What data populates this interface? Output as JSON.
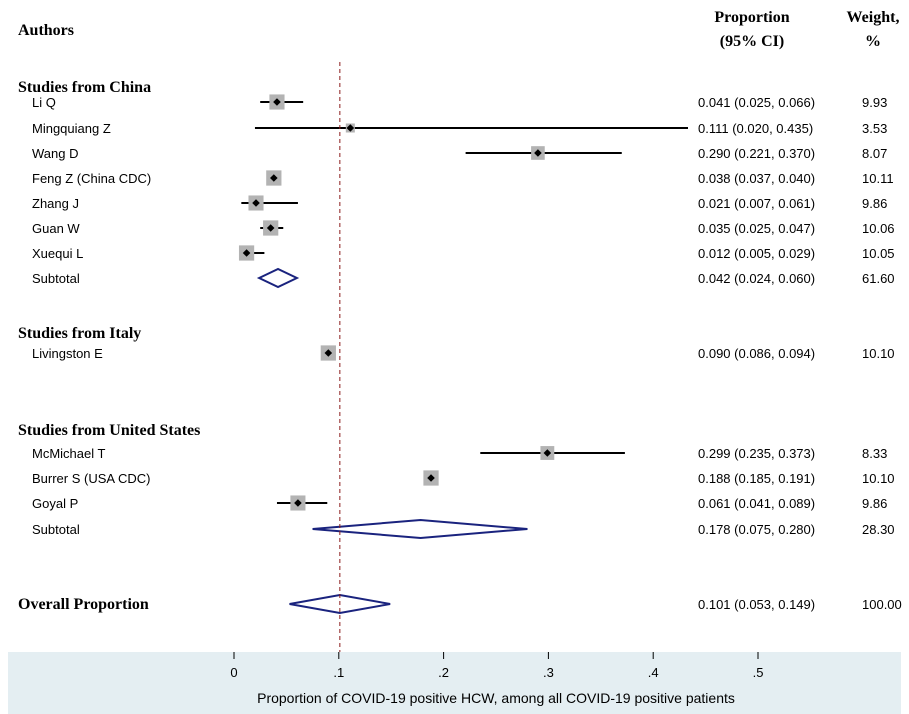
{
  "chart_data": {
    "type": "forest",
    "header": {
      "authors": "Authors",
      "proportion_line1": "Proportion",
      "proportion_line2": "(95% CI)",
      "weight_line1": "Weight,",
      "weight_line2": "%"
    },
    "groups": [
      {
        "title": "Studies from China",
        "studies": [
          {
            "label": "Li Q",
            "est": 0.041,
            "lo": 0.025,
            "hi": 0.066,
            "ci_text": "0.041 (0.025, 0.066)",
            "weight": "9.93"
          },
          {
            "label": "Mingquiang Z",
            "est": 0.111,
            "lo": 0.02,
            "hi": 0.435,
            "ci_text": "0.111 (0.020, 0.435)",
            "weight": "3.53"
          },
          {
            "label": "Wang D",
            "est": 0.29,
            "lo": 0.221,
            "hi": 0.37,
            "ci_text": "0.290 (0.221, 0.370)",
            "weight": "8.07"
          },
          {
            "label": "Feng Z (China CDC)",
            "est": 0.038,
            "lo": 0.037,
            "hi": 0.04,
            "ci_text": "0.038 (0.037, 0.040)",
            "weight": "10.11"
          },
          {
            "label": "Zhang J",
            "est": 0.021,
            "lo": 0.007,
            "hi": 0.061,
            "ci_text": "0.021 (0.007, 0.061)",
            "weight": "9.86"
          },
          {
            "label": "Guan W",
            "est": 0.035,
            "lo": 0.025,
            "hi": 0.047,
            "ci_text": "0.035 (0.025, 0.047)",
            "weight": "10.06"
          },
          {
            "label": "Xuequi L",
            "est": 0.012,
            "lo": 0.005,
            "hi": 0.029,
            "ci_text": "0.012 (0.005, 0.029)",
            "weight": "10.05"
          }
        ],
        "subtotal": {
          "label": "Subtotal",
          "est": 0.042,
          "lo": 0.024,
          "hi": 0.06,
          "ci_text": "0.042 (0.024, 0.060)",
          "weight": "61.60"
        }
      },
      {
        "title": "Studies from Italy",
        "studies": [
          {
            "label": "Livingston E",
            "est": 0.09,
            "lo": 0.086,
            "hi": 0.094,
            "ci_text": "0.090 (0.086, 0.094)",
            "weight": "10.10"
          }
        ]
      },
      {
        "title": "Studies from United States",
        "studies": [
          {
            "label": "McMichael T",
            "est": 0.299,
            "lo": 0.235,
            "hi": 0.373,
            "ci_text": "0.299 (0.235, 0.373)",
            "weight": "8.33"
          },
          {
            "label": "Burrer S (USA CDC)",
            "est": 0.188,
            "lo": 0.185,
            "hi": 0.191,
            "ci_text": "0.188 (0.185, 0.191)",
            "weight": "10.10"
          },
          {
            "label": "Goyal P",
            "est": 0.061,
            "lo": 0.041,
            "hi": 0.089,
            "ci_text": "0.061 (0.041, 0.089)",
            "weight": "9.86"
          }
        ],
        "subtotal": {
          "label": "Subtotal",
          "est": 0.178,
          "lo": 0.075,
          "hi": 0.28,
          "ci_text": "0.178 (0.075, 0.280)",
          "weight": "28.30"
        }
      }
    ],
    "overall": {
      "label": "Overall Proportion",
      "est": 0.101,
      "lo": 0.053,
      "hi": 0.149,
      "ci_text": "0.101 (0.053, 0.149)",
      "weight": "100.00"
    },
    "reference_line": 0.101,
    "xlim": [
      0,
      0.5
    ],
    "xticks": [
      0,
      0.1,
      0.2,
      0.3,
      0.4,
      0.5
    ],
    "xtick_labels": [
      "0",
      ".1",
      ".2",
      ".3",
      ".4",
      ".5"
    ],
    "xlabel": "Proportion of COVID-19 positive HCW, among all COVID-19 positive patients",
    "colors": {
      "diamond": "#1a237e",
      "reference_line": "#8b1a1a",
      "weight_box": "#b3b3b3",
      "ci_line": "#000000",
      "axis_panel": "#e4eef2"
    }
  }
}
